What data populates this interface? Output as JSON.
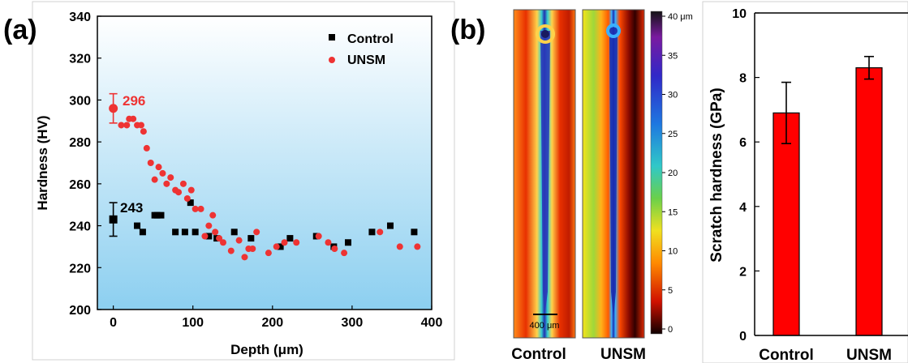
{
  "panel_labels": [
    "(a)",
    "(b)"
  ],
  "colors": {
    "control": "#000000",
    "unsm": "#ee3333",
    "bar": "#ff0000"
  },
  "chart_data": [
    {
      "type": "scatter",
      "panel": "(a)",
      "title": "",
      "xlabel": "Depth (μm)",
      "ylabel": "Hardness (HV)",
      "xlim": [
        -20,
        400
      ],
      "ylim": [
        200,
        340
      ],
      "xticks": [
        "0",
        "100",
        "200",
        "300",
        "400"
      ],
      "yticks": [
        "200",
        "220",
        "240",
        "260",
        "280",
        "300",
        "320",
        "340"
      ],
      "legend": {
        "placement": "top-right",
        "entries": [
          "Control",
          "UNSM"
        ]
      },
      "annotations": [
        {
          "text": "296",
          "series": "UNSM"
        },
        {
          "text": "243",
          "series": "Control"
        }
      ],
      "surface_points": [
        {
          "series": "UNSM",
          "x": 0,
          "y": 296,
          "err": 7
        },
        {
          "series": "Control",
          "x": 0,
          "y": 243,
          "err": 8
        }
      ],
      "series": [
        {
          "name": "Control",
          "marker": "square",
          "x": [
            30,
            37,
            52,
            55,
            60,
            78,
            90,
            97,
            103,
            120,
            130,
            152,
            173,
            210,
            222,
            255,
            277,
            295,
            325,
            348,
            378
          ],
          "y": [
            240,
            237,
            245,
            245,
            245,
            237,
            237,
            251,
            237,
            235,
            234,
            237,
            234,
            230,
            234,
            235,
            230,
            232,
            237,
            240,
            237
          ]
        },
        {
          "name": "UNSM",
          "marker": "circle",
          "x": [
            10,
            17,
            20,
            25,
            30,
            35,
            38,
            42,
            47,
            52,
            57,
            62,
            67,
            72,
            78,
            82,
            88,
            93,
            98,
            103,
            110,
            115,
            120,
            125,
            128,
            133,
            138,
            148,
            158,
            165,
            170,
            175,
            180,
            195,
            205,
            215,
            230,
            258,
            270,
            278,
            290,
            335,
            360,
            382
          ],
          "y": [
            288,
            288,
            291,
            291,
            288,
            288,
            285,
            277,
            270,
            262,
            268,
            265,
            260,
            263,
            257,
            256,
            260,
            253,
            257,
            248,
            248,
            235,
            240,
            245,
            237,
            234,
            232,
            228,
            233,
            225,
            229,
            229,
            237,
            227,
            230,
            232,
            232,
            235,
            232,
            229,
            227,
            237,
            230,
            230
          ]
        }
      ]
    },
    {
      "type": "heatmap",
      "panel": "(b)",
      "images": [
        {
          "label": "Control",
          "scale_bar": "400 μm"
        },
        {
          "label": "UNSM"
        }
      ],
      "colorbar": {
        "unit": "40 μm",
        "ticks": [
          "40 μm",
          "35",
          "30",
          "25",
          "20",
          "15",
          "10",
          "5",
          "0"
        ],
        "range": [
          0,
          40
        ]
      }
    },
    {
      "type": "bar",
      "panel": "(b)",
      "title": "",
      "categories": [
        "Control",
        "UNSM"
      ],
      "values": [
        6.9,
        8.3
      ],
      "errors": [
        0.95,
        0.35
      ],
      "xlabel": "",
      "ylabel": "Scratch hardness (GPa)",
      "ylim": [
        0,
        10
      ],
      "yticks": [
        "0",
        "2",
        "4",
        "6",
        "8",
        "10"
      ]
    }
  ]
}
